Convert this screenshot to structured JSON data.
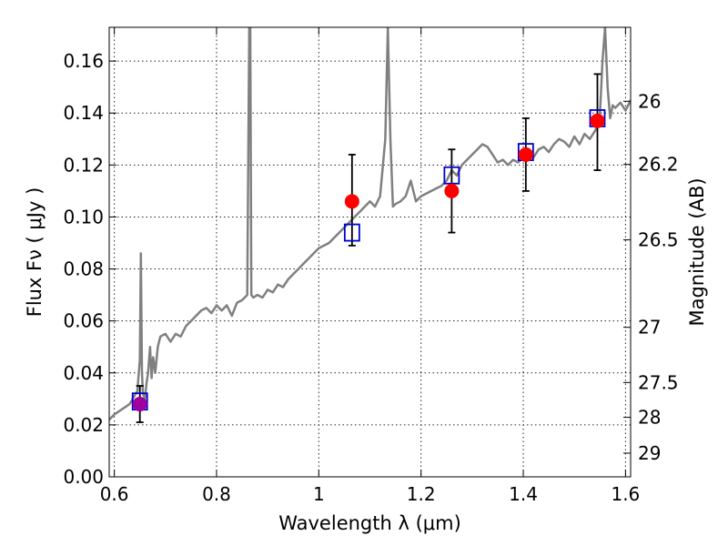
{
  "chart_data": {
    "type": "scatter",
    "xlabel": "Wavelength  λ (μm)",
    "ylabel_left": "Flux  Fν  ( μJy )",
    "ylabel_right": "Magnitude (AB)",
    "xlim": [
      0.59,
      1.61
    ],
    "ylim": [
      0.0,
      0.173
    ],
    "x_ticks": [
      0.6,
      0.8,
      1.0,
      1.2,
      1.4,
      1.6
    ],
    "x_tick_labels": [
      "0.6",
      "0.8",
      "1",
      "1.2",
      "1.4",
      "1.6"
    ],
    "y_ticks": [
      0.0,
      0.02,
      0.04,
      0.06,
      0.08,
      0.1,
      0.12,
      0.14,
      0.16
    ],
    "y_tick_labels": [
      "0.00",
      "0.02",
      "0.04",
      "0.06",
      "0.08",
      "0.10",
      "0.12",
      "0.14",
      "0.16"
    ],
    "right_ticks": [
      26,
      26.2,
      26.5,
      27,
      27.5,
      28,
      29
    ],
    "right_tick_labels": [
      "26",
      "26.2",
      "26.5",
      "27",
      "27.5",
      "28",
      "29"
    ],
    "grid": true,
    "series": [
      {
        "type": "line",
        "color": "#808080",
        "x": [
          0.59,
          0.6,
          0.615,
          0.63,
          0.645,
          0.65,
          0.652,
          0.654,
          0.656,
          0.66,
          0.663,
          0.666,
          0.67,
          0.673,
          0.676,
          0.68,
          0.685,
          0.69,
          0.7,
          0.71,
          0.72,
          0.73,
          0.74,
          0.75,
          0.76,
          0.77,
          0.78,
          0.79,
          0.8,
          0.81,
          0.82,
          0.83,
          0.84,
          0.85,
          0.86,
          0.864,
          0.866,
          0.868,
          0.872,
          0.88,
          0.89,
          0.9,
          0.91,
          0.92,
          0.93,
          0.94,
          0.95,
          0.96,
          0.97,
          0.98,
          0.99,
          1.0,
          1.01,
          1.02,
          1.03,
          1.04,
          1.05,
          1.06,
          1.07,
          1.08,
          1.09,
          1.1,
          1.11,
          1.12,
          1.13,
          1.135,
          1.14,
          1.145,
          1.15,
          1.16,
          1.17,
          1.18,
          1.19,
          1.2,
          1.21,
          1.22,
          1.23,
          1.24,
          1.25,
          1.26,
          1.27,
          1.28,
          1.29,
          1.3,
          1.31,
          1.32,
          1.33,
          1.34,
          1.35,
          1.36,
          1.37,
          1.38,
          1.39,
          1.4,
          1.41,
          1.42,
          1.43,
          1.44,
          1.45,
          1.46,
          1.47,
          1.48,
          1.49,
          1.5,
          1.51,
          1.52,
          1.53,
          1.54,
          1.545,
          1.55,
          1.555,
          1.56,
          1.565,
          1.57,
          1.575,
          1.58,
          1.59,
          1.6,
          1.61
        ],
        "y": [
          0.022,
          0.024,
          0.026,
          0.028,
          0.033,
          0.045,
          0.086,
          0.04,
          0.032,
          0.03,
          0.036,
          0.04,
          0.05,
          0.038,
          0.046,
          0.04,
          0.05,
          0.054,
          0.055,
          0.052,
          0.055,
          0.054,
          0.058,
          0.06,
          0.062,
          0.064,
          0.065,
          0.063,
          0.066,
          0.064,
          0.066,
          0.062,
          0.067,
          0.068,
          0.07,
          0.173,
          0.173,
          0.07,
          0.069,
          0.07,
          0.069,
          0.072,
          0.071,
          0.074,
          0.073,
          0.076,
          0.078,
          0.08,
          0.082,
          0.084,
          0.086,
          0.088,
          0.089,
          0.09,
          0.092,
          0.094,
          0.096,
          0.098,
          0.1,
          0.102,
          0.104,
          0.106,
          0.104,
          0.108,
          0.13,
          0.173,
          0.13,
          0.104,
          0.105,
          0.106,
          0.108,
          0.114,
          0.106,
          0.108,
          0.109,
          0.11,
          0.111,
          0.112,
          0.114,
          0.118,
          0.116,
          0.12,
          0.122,
          0.124,
          0.126,
          0.128,
          0.127,
          0.124,
          0.121,
          0.122,
          0.12,
          0.122,
          0.121,
          0.123,
          0.124,
          0.123,
          0.126,
          0.127,
          0.125,
          0.128,
          0.13,
          0.129,
          0.127,
          0.131,
          0.128,
          0.132,
          0.13,
          0.133,
          0.135,
          0.14,
          0.16,
          0.173,
          0.15,
          0.138,
          0.143,
          0.142,
          0.144,
          0.141,
          0.145
        ]
      },
      {
        "type": "errorbar",
        "color": "#000000",
        "x": [
          0.65,
          1.065,
          1.26,
          1.405,
          1.545
        ],
        "y": [
          0.028,
          0.106,
          0.11,
          0.124,
          0.137
        ],
        "yerr_low": [
          0.021,
          0.089,
          0.094,
          0.11,
          0.118
        ],
        "yerr_high": [
          0.035,
          0.124,
          0.126,
          0.138,
          0.155
        ]
      },
      {
        "type": "scatter",
        "marker": "square-open",
        "color": "#0000cc",
        "x": [
          0.65,
          1.065,
          1.26,
          1.405,
          1.545
        ],
        "y": [
          0.029,
          0.094,
          0.116,
          0.125,
          0.138
        ]
      },
      {
        "type": "scatter",
        "marker": "circle",
        "color": "#ff0000",
        "x": [
          0.65,
          1.065,
          1.26,
          1.405,
          1.545
        ],
        "y": [
          0.028,
          0.106,
          0.11,
          0.124,
          0.137
        ],
        "point_colors": [
          "#a000a0",
          "#ff0000",
          "#ff0000",
          "#ff0000",
          "#ff0000"
        ]
      }
    ]
  }
}
